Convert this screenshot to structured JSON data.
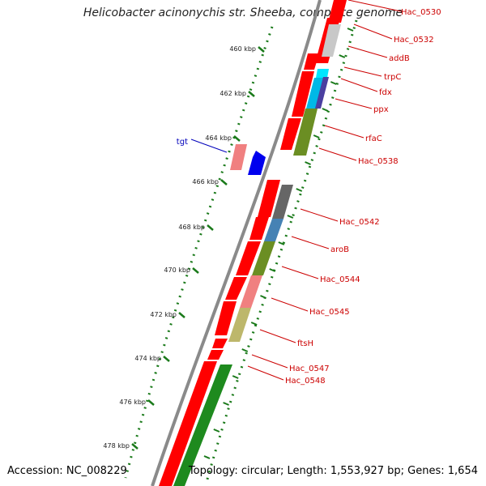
{
  "title": "Helicobacter acinonychis str. Sheeba, complete genome",
  "accession": "Accession: NC_008229",
  "topology": "Topology: circular; Length: 1,553,927 bp; Genes: 1,654",
  "colors": {
    "backbone": "#8a8a8a",
    "tick": "#1a7a1a",
    "gene_label": "#cc0000",
    "tgt_label": "#0000bb",
    "forward_gene": "#ff0000",
    "reverse_gene_default": "#ff0000"
  },
  "scale_labels": [
    "460 kbp",
    "462 kbp",
    "464 kbp",
    "466 kbp",
    "468 kbp",
    "470 kbp",
    "472 kbp",
    "474 kbp",
    "476 kbp",
    "478 kbp"
  ],
  "gene_labels": [
    {
      "name": "Hac_0530",
      "color": "#cc0000"
    },
    {
      "name": "Hac_0532",
      "color": "#cc0000"
    },
    {
      "name": "addB",
      "color": "#cc0000"
    },
    {
      "name": "trpC",
      "color": "#cc0000"
    },
    {
      "name": "fdx",
      "color": "#cc0000"
    },
    {
      "name": "ppx",
      "color": "#cc0000"
    },
    {
      "name": "rfaC",
      "color": "#cc0000"
    },
    {
      "name": "Hac_0538",
      "color": "#cc0000"
    },
    {
      "name": "Hac_0542",
      "color": "#cc0000"
    },
    {
      "name": "aroB",
      "color": "#cc0000"
    },
    {
      "name": "Hac_0544",
      "color": "#cc0000"
    },
    {
      "name": "Hac_0545",
      "color": "#cc0000"
    },
    {
      "name": "ftsH",
      "color": "#cc0000"
    },
    {
      "name": "Hac_0547",
      "color": "#cc0000"
    },
    {
      "name": "Hac_0548",
      "color": "#cc0000"
    },
    {
      "name": "tgt",
      "color": "#0000bb"
    }
  ]
}
